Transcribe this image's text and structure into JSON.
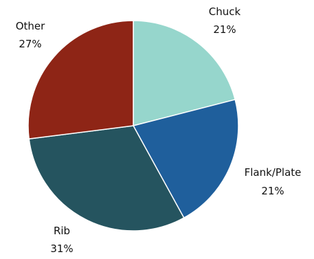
{
  "chart_data": {
    "type": "pie",
    "slices": [
      {
        "name": "Chuck",
        "value": 21,
        "label": "21%",
        "color": "#96d6cc"
      },
      {
        "name": "Flank/Plate",
        "value": 21,
        "label": "21%",
        "color": "#1f5f9c"
      },
      {
        "name": "Rib",
        "value": 31,
        "label": "31%",
        "color": "#25545f"
      },
      {
        "name": "Other",
        "value": 27,
        "label": "27%",
        "color": "#8e2516"
      }
    ],
    "legend": "none"
  }
}
